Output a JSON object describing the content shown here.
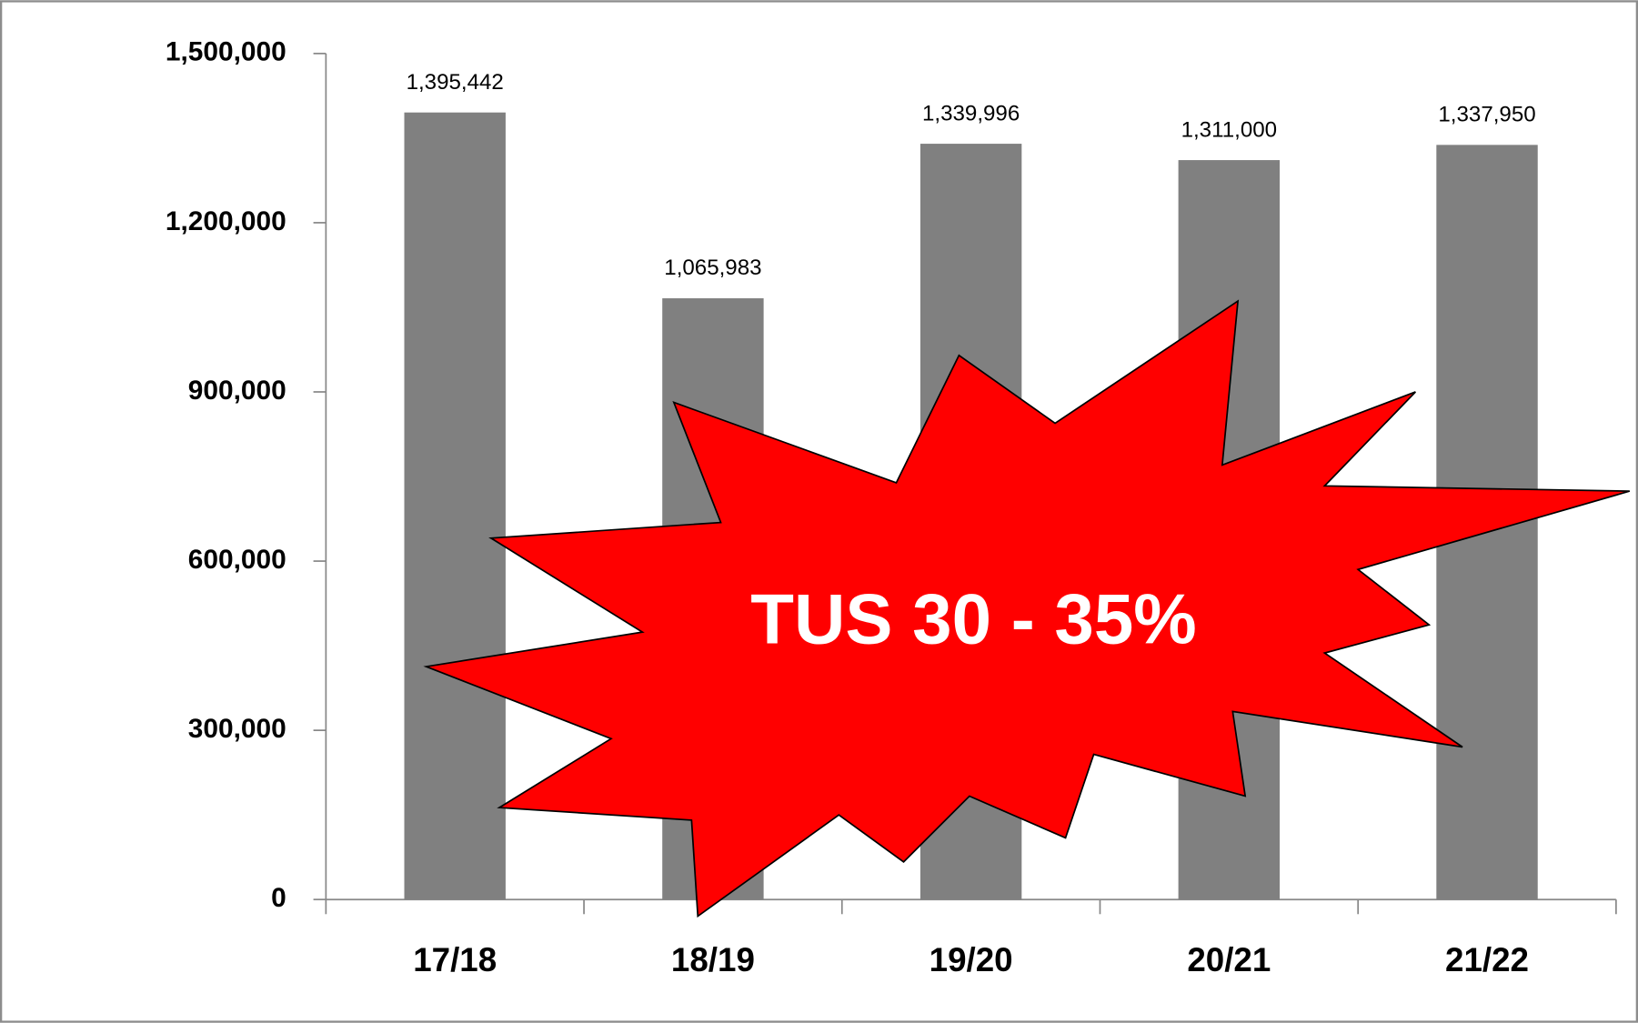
{
  "chart_data": {
    "type": "bar",
    "categories": [
      "17/18",
      "18/19",
      "19/20",
      "20/21",
      "21/22"
    ],
    "values": [
      1395442,
      1065983,
      1339996,
      1311000,
      1337950
    ],
    "value_labels": [
      "1,395,442",
      "1,065,983",
      "1,339,996",
      "1,311,000",
      "1,337,950"
    ],
    "color": "#808080",
    "ylim": [
      0,
      1500000
    ],
    "yticks": [
      0,
      {
        "value": 300000,
        "label": "300,000"
      },
      {
        "value": 600000,
        "label": "600,000"
      },
      {
        "value": 900000,
        "label": "900,000"
      },
      {
        "value": 1200000,
        "label": "1,200,000"
      },
      {
        "value": 1500000,
        "label": "1,500,000"
      }
    ],
    "annotation": "TUS 30 - 35%"
  }
}
